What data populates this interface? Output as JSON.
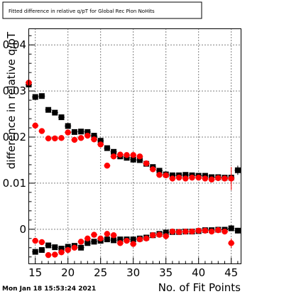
{
  "chart_data": {
    "type": "scatter",
    "title": "Fitted difference in relative q/pT for Global Rec Pion NoHits",
    "xlabel": "No. of Fit Points",
    "ylabel": "difference in relative q/pT",
    "xlim": [
      14,
      46.5
    ],
    "ylim": [
      -0.0075,
      0.0435
    ],
    "xticks": [
      15,
      20,
      25,
      30,
      35,
      40,
      45
    ],
    "yticks": [
      0,
      0.01,
      0.02,
      0.03,
      0.04
    ],
    "ytick_labels": [
      "0",
      "0.01",
      "0.02",
      "0.03",
      "0.04"
    ],
    "grid": true,
    "timestamp": "Mon Jan 18 15:53:24 2021",
    "series": [
      {
        "color": "#000000",
        "x": [
          14,
          15,
          16,
          17,
          18,
          19,
          20,
          21,
          22,
          23,
          24,
          25,
          26,
          27,
          28,
          29,
          30,
          31,
          32,
          33,
          34,
          35,
          36,
          37,
          38,
          39,
          40,
          41,
          42,
          43,
          44,
          45,
          46
        ],
        "y": [
          0.0314,
          0.0287,
          0.0289,
          0.0259,
          0.0253,
          0.0243,
          0.0224,
          0.0211,
          0.0212,
          0.0211,
          0.0203,
          0.0192,
          0.0176,
          0.0168,
          0.0158,
          0.0155,
          0.0151,
          0.015,
          0.0142,
          0.0135,
          0.0127,
          0.0119,
          0.0117,
          0.0117,
          0.0118,
          0.0117,
          0.0116,
          0.0116,
          0.0113,
          0.0113,
          0.0112,
          0.0112,
          0.0128
        ],
        "yerr": [
          0.0004,
          0.0004,
          0.0004,
          0.0004,
          0.0004,
          0.0004,
          0.0004,
          0.0003,
          0.0003,
          0.0003,
          0.0003,
          0.0003,
          0.0003,
          0.0003,
          0.0003,
          0.0003,
          0.0003,
          0.0003,
          0.0003,
          0.0003,
          0.0003,
          0.0003,
          0.0003,
          0.0003,
          0.0003,
          0.0003,
          0.0003,
          0.0003,
          0.0003,
          0.0003,
          0.0003,
          0.0003,
          0.001
        ]
      },
      {
        "color": "#ff0000",
        "x": [
          14,
          15,
          16,
          17,
          18,
          19,
          20,
          21,
          22,
          23,
          24,
          25,
          26,
          27,
          28,
          29,
          30,
          31,
          32,
          33,
          34,
          35,
          36,
          37,
          38,
          39,
          40,
          41,
          42,
          43,
          44,
          45
        ],
        "y": [
          0.0318,
          0.0225,
          0.0213,
          0.0197,
          0.0197,
          0.0198,
          0.021,
          0.0194,
          0.0198,
          0.0203,
          0.0195,
          0.0184,
          0.0138,
          0.0158,
          0.0162,
          0.0161,
          0.0161,
          0.0158,
          0.0143,
          0.013,
          0.0118,
          0.0117,
          0.011,
          0.0112,
          0.011,
          0.0112,
          0.0112,
          0.011,
          0.0108,
          0.0111,
          0.011,
          0.011
        ],
        "yerr": [
          0.009,
          0.0004,
          0.0004,
          0.0004,
          0.0004,
          0.0004,
          0.0004,
          0.0004,
          0.0004,
          0.0004,
          0.0004,
          0.0004,
          0.0004,
          0.0004,
          0.0004,
          0.0004,
          0.0004,
          0.0004,
          0.0004,
          0.0004,
          0.0004,
          0.0004,
          0.0004,
          0.0004,
          0.0004,
          0.0004,
          0.0004,
          0.0004,
          0.0004,
          0.0004,
          0.0004,
          0.0025
        ]
      },
      {
        "color": "#000000",
        "x": [
          15,
          16,
          17,
          18,
          19,
          20,
          21,
          22,
          23,
          24,
          25,
          26,
          27,
          28,
          29,
          30,
          31,
          32,
          33,
          34,
          35,
          36,
          37,
          38,
          39,
          40,
          41,
          42,
          43,
          44,
          45,
          46
        ],
        "y": [
          -0.0049,
          -0.0045,
          -0.0035,
          -0.0039,
          -0.0042,
          -0.0038,
          -0.0036,
          -0.004,
          -0.003,
          -0.0027,
          -0.0025,
          -0.0022,
          -0.0024,
          -0.0022,
          -0.0022,
          -0.0022,
          -0.002,
          -0.0018,
          -0.0013,
          -0.001,
          -0.0007,
          -0.0006,
          -0.0006,
          -0.0005,
          -0.0005,
          -0.0004,
          -0.0002,
          -0.0002,
          -0.0001,
          -0.0001,
          0.0002,
          -0.0003
        ],
        "yerr": [
          0.0006,
          0.0005,
          0.0005,
          0.0005,
          0.0005,
          0.0004,
          0.0004,
          0.0004,
          0.0004,
          0.0004,
          0.0004,
          0.0004,
          0.0004,
          0.0004,
          0.0004,
          0.0004,
          0.0004,
          0.0004,
          0.0004,
          0.0004,
          0.0004,
          0.0004,
          0.0004,
          0.0004,
          0.0004,
          0.0004,
          0.0004,
          0.0004,
          0.0004,
          0.0004,
          0.0004,
          0.0006
        ]
      },
      {
        "color": "#ff0000",
        "x": [
          15,
          16,
          17,
          18,
          19,
          20,
          21,
          22,
          23,
          24,
          25,
          26,
          27,
          28,
          29,
          30,
          31,
          32,
          33,
          34,
          35,
          36,
          37,
          38,
          39,
          40,
          41,
          42,
          43,
          44,
          45
        ],
        "y": [
          -0.0025,
          -0.0028,
          -0.0056,
          -0.0055,
          -0.005,
          -0.0045,
          -0.004,
          -0.0027,
          -0.002,
          -0.0012,
          -0.002,
          -0.001,
          -0.0013,
          -0.003,
          -0.0025,
          -0.0032,
          -0.0022,
          -0.002,
          -0.0013,
          -0.0012,
          -0.0015,
          -0.0005,
          -0.0006,
          -0.0005,
          -0.0005,
          -0.0003,
          -0.0003,
          -0.0005,
          -0.0002,
          -0.0005,
          -0.003
        ],
        "yerr": [
          0.0005,
          0.0005,
          0.0005,
          0.0005,
          0.0005,
          0.0005,
          0.0005,
          0.0005,
          0.0005,
          0.0005,
          0.0005,
          0.0005,
          0.0005,
          0.0005,
          0.0005,
          0.0005,
          0.0005,
          0.0005,
          0.0005,
          0.0005,
          0.0005,
          0.0005,
          0.0005,
          0.0005,
          0.0005,
          0.0005,
          0.0005,
          0.0005,
          0.0005,
          0.0005,
          0.001
        ]
      }
    ]
  }
}
